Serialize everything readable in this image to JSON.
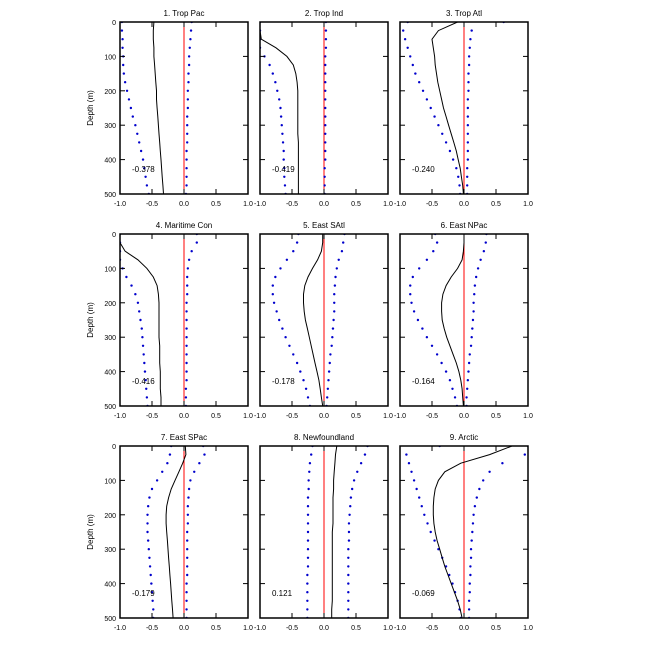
{
  "figure": {
    "ylabel": "Depth (m)",
    "x_ticks": [
      "-1.0",
      "-0.5",
      "0.0",
      "0.5",
      "1.0"
    ],
    "y_ticks": [
      "0",
      "100",
      "200",
      "300",
      "400",
      "500"
    ],
    "colors": {
      "mean": "#000000",
      "bounds": "#0000cc",
      "zero": "#ff0000"
    }
  },
  "chart_data": [
    {
      "type": "line",
      "title": "1. Trop Pac",
      "annotation": "-0.378",
      "xlim": [
        -1.0,
        1.0
      ],
      "ylim": [
        500,
        0
      ],
      "ylabel": "Depth (m)",
      "depths": [
        0,
        25,
        50,
        75,
        100,
        125,
        150,
        175,
        200,
        225,
        250,
        275,
        300,
        325,
        350,
        375,
        400,
        425,
        450,
        475,
        500
      ],
      "series": [
        {
          "role": "mean",
          "values": [
            -0.47,
            -0.48,
            -0.48,
            -0.47,
            -0.47,
            -0.46,
            -0.45,
            -0.44,
            -0.43,
            -0.43,
            -0.42,
            -0.41,
            -0.4,
            -0.39,
            -0.38,
            -0.37,
            -0.36,
            -0.35,
            -0.34,
            -0.33,
            -0.32
          ]
        },
        {
          "role": "lower",
          "values": [
            -0.97,
            -0.97,
            -0.96,
            -0.96,
            -0.95,
            -0.95,
            -0.94,
            -0.92,
            -0.89,
            -0.86,
            -0.83,
            -0.8,
            -0.76,
            -0.73,
            -0.7,
            -0.67,
            -0.64,
            -0.62,
            -0.6,
            -0.58,
            -0.55
          ]
        },
        {
          "role": "upper",
          "values": [
            0.12,
            0.11,
            0.1,
            0.09,
            0.08,
            0.08,
            0.07,
            0.07,
            0.06,
            0.06,
            0.06,
            0.05,
            0.05,
            0.05,
            0.05,
            0.04,
            0.04,
            0.04,
            0.04,
            0.04,
            0.03
          ]
        }
      ]
    },
    {
      "type": "line",
      "title": "2. Trop Ind",
      "annotation": "-0.419",
      "xlim": [
        -1.0,
        1.0
      ],
      "ylim": [
        500,
        0
      ],
      "ylabel": "",
      "depths": [
        0,
        25,
        50,
        75,
        100,
        125,
        150,
        175,
        200,
        225,
        250,
        275,
        300,
        325,
        350,
        375,
        400,
        425,
        450,
        475,
        500
      ],
      "series": [
        {
          "role": "mean",
          "values": [
            -1.05,
            -1.05,
            -0.98,
            -0.75,
            -0.58,
            -0.48,
            -0.44,
            -0.42,
            -0.41,
            -0.41,
            -0.41,
            -0.41,
            -0.41,
            -0.41,
            -0.4,
            -0.4,
            -0.4,
            -0.4,
            -0.4,
            -0.4,
            -0.4
          ]
        },
        {
          "role": "lower",
          "values": [
            -1.05,
            -1.05,
            -1.05,
            -1.0,
            -0.93,
            -0.85,
            -0.8,
            -0.76,
            -0.73,
            -0.7,
            -0.68,
            -0.67,
            -0.66,
            -0.65,
            -0.64,
            -0.63,
            -0.63,
            -0.62,
            -0.62,
            -0.61,
            -0.6
          ]
        },
        {
          "role": "upper",
          "values": [
            0.03,
            0.03,
            0.03,
            0.03,
            0.02,
            0.02,
            0.02,
            0.02,
            0.02,
            0.02,
            0.02,
            0.02,
            0.02,
            0.02,
            0.02,
            0.02,
            0.02,
            0.01,
            0.01,
            0.01,
            0.01
          ]
        }
      ]
    },
    {
      "type": "line",
      "title": "3. Trop Atl",
      "annotation": "-0.240",
      "xlim": [
        -1.0,
        1.0
      ],
      "ylim": [
        500,
        0
      ],
      "ylabel": "",
      "depths": [
        0,
        25,
        50,
        75,
        100,
        125,
        150,
        175,
        200,
        225,
        250,
        275,
        300,
        325,
        350,
        375,
        400,
        425,
        450,
        475,
        500
      ],
      "series": [
        {
          "role": "mean",
          "values": [
            -0.1,
            -0.4,
            -0.5,
            -0.48,
            -0.46,
            -0.45,
            -0.43,
            -0.41,
            -0.38,
            -0.35,
            -0.32,
            -0.28,
            -0.24,
            -0.2,
            -0.16,
            -0.12,
            -0.09,
            -0.06,
            -0.04,
            -0.02,
            -0.01
          ]
        },
        {
          "role": "lower",
          "values": [
            -0.88,
            -0.95,
            -0.92,
            -0.88,
            -0.84,
            -0.8,
            -0.76,
            -0.7,
            -0.64,
            -0.58,
            -0.52,
            -0.46,
            -0.4,
            -0.34,
            -0.28,
            -0.22,
            -0.17,
            -0.12,
            -0.09,
            -0.07,
            -0.06
          ]
        },
        {
          "role": "upper",
          "values": [
            0.62,
            0.12,
            0.1,
            0.09,
            0.08,
            0.08,
            0.07,
            0.07,
            0.07,
            0.06,
            0.06,
            0.06,
            0.06,
            0.06,
            0.06,
            0.06,
            0.06,
            0.05,
            0.05,
            0.05,
            0.05
          ]
        }
      ]
    },
    {
      "type": "line",
      "title": "4. Maritime Con",
      "annotation": "-0.416",
      "xlim": [
        -1.0,
        1.0
      ],
      "ylim": [
        500,
        0
      ],
      "ylabel": "Depth (m)",
      "depths": [
        0,
        25,
        50,
        75,
        100,
        125,
        150,
        175,
        200,
        225,
        250,
        275,
        300,
        325,
        350,
        375,
        400,
        425,
        450,
        475,
        500
      ],
      "series": [
        {
          "role": "mean",
          "values": [
            -1.05,
            -1.05,
            -0.92,
            -0.72,
            -0.58,
            -0.48,
            -0.42,
            -0.4,
            -0.39,
            -0.39,
            -0.39,
            -0.39,
            -0.39,
            -0.38,
            -0.38,
            -0.38,
            -0.37,
            -0.37,
            -0.37,
            -0.36,
            -0.36
          ]
        },
        {
          "role": "lower",
          "values": [
            -1.05,
            -1.05,
            -1.05,
            -1.0,
            -0.96,
            -0.9,
            -0.82,
            -0.76,
            -0.72,
            -0.7,
            -0.68,
            -0.66,
            -0.65,
            -0.64,
            -0.63,
            -0.62,
            -0.61,
            -0.6,
            -0.59,
            -0.58,
            -0.57
          ]
        },
        {
          "role": "upper",
          "values": [
            0.2,
            0.2,
            0.12,
            0.08,
            0.06,
            0.05,
            0.05,
            0.05,
            0.04,
            0.04,
            0.04,
            0.04,
            0.04,
            0.04,
            0.04,
            0.04,
            0.04,
            0.04,
            0.03,
            0.03,
            0.03
          ]
        }
      ]
    },
    {
      "type": "line",
      "title": "5. East SAtl",
      "annotation": "-0.178",
      "xlim": [
        -1.0,
        1.0
      ],
      "ylim": [
        500,
        0
      ],
      "ylabel": "",
      "depths": [
        0,
        25,
        50,
        75,
        100,
        125,
        150,
        175,
        200,
        225,
        250,
        275,
        300,
        325,
        350,
        375,
        400,
        425,
        450,
        475,
        500
      ],
      "series": [
        {
          "role": "mean",
          "values": [
            -0.02,
            -0.02,
            -0.04,
            -0.1,
            -0.18,
            -0.25,
            -0.3,
            -0.32,
            -0.32,
            -0.31,
            -0.29,
            -0.26,
            -0.23,
            -0.2,
            -0.17,
            -0.14,
            -0.11,
            -0.08,
            -0.06,
            -0.04,
            -0.02
          ]
        },
        {
          "role": "lower",
          "values": [
            -0.4,
            -0.42,
            -0.48,
            -0.58,
            -0.68,
            -0.76,
            -0.8,
            -0.8,
            -0.78,
            -0.74,
            -0.7,
            -0.65,
            -0.6,
            -0.54,
            -0.48,
            -0.42,
            -0.37,
            -0.32,
            -0.28,
            -0.25,
            -0.22
          ]
        },
        {
          "role": "upper",
          "values": [
            0.32,
            0.3,
            0.28,
            0.23,
            0.2,
            0.18,
            0.17,
            0.16,
            0.16,
            0.16,
            0.15,
            0.14,
            0.13,
            0.12,
            0.1,
            0.09,
            0.08,
            0.07,
            0.06,
            0.05,
            0.04
          ]
        }
      ]
    },
    {
      "type": "line",
      "title": "6. East NPac",
      "annotation": "-0.164",
      "xlim": [
        -1.0,
        1.0
      ],
      "ylim": [
        500,
        0
      ],
      "ylabel": "",
      "depths": [
        0,
        25,
        50,
        75,
        100,
        125,
        150,
        175,
        200,
        225,
        250,
        275,
        300,
        325,
        350,
        375,
        400,
        425,
        450,
        475,
        500
      ],
      "series": [
        {
          "role": "mean",
          "values": [
            0.0,
            0.0,
            -0.01,
            -0.03,
            -0.1,
            -0.2,
            -0.28,
            -0.33,
            -0.35,
            -0.35,
            -0.34,
            -0.31,
            -0.27,
            -0.22,
            -0.17,
            -0.12,
            -0.08,
            -0.05,
            -0.03,
            -0.02,
            -0.01
          ]
        },
        {
          "role": "lower",
          "values": [
            -0.45,
            -0.42,
            -0.48,
            -0.58,
            -0.7,
            -0.8,
            -0.84,
            -0.84,
            -0.82,
            -0.78,
            -0.72,
            -0.65,
            -0.58,
            -0.5,
            -0.42,
            -0.35,
            -0.28,
            -0.22,
            -0.18,
            -0.14,
            -0.11
          ]
        },
        {
          "role": "upper",
          "values": [
            0.35,
            0.34,
            0.31,
            0.26,
            0.22,
            0.19,
            0.17,
            0.16,
            0.15,
            0.15,
            0.14,
            0.13,
            0.12,
            0.11,
            0.09,
            0.08,
            0.07,
            0.06,
            0.05,
            0.04,
            0.04
          ]
        }
      ]
    },
    {
      "type": "line",
      "title": "7. East SPac",
      "annotation": "-0.179",
      "xlim": [
        -1.0,
        1.0
      ],
      "ylim": [
        500,
        0
      ],
      "ylabel": "Depth (m)",
      "depths": [
        0,
        25,
        50,
        75,
        100,
        125,
        150,
        175,
        200,
        225,
        250,
        275,
        300,
        325,
        350,
        375,
        400,
        425,
        450,
        475,
        500
      ],
      "series": [
        {
          "role": "mean",
          "values": [
            0.02,
            0.03,
            -0.02,
            -0.08,
            -0.14,
            -0.2,
            -0.24,
            -0.27,
            -0.28,
            -0.28,
            -0.27,
            -0.26,
            -0.25,
            -0.24,
            -0.23,
            -0.22,
            -0.21,
            -0.2,
            -0.19,
            -0.18,
            -0.17
          ]
        },
        {
          "role": "lower",
          "values": [
            -0.2,
            -0.22,
            -0.26,
            -0.34,
            -0.42,
            -0.5,
            -0.54,
            -0.56,
            -0.57,
            -0.57,
            -0.57,
            -0.56,
            -0.55,
            -0.54,
            -0.53,
            -0.52,
            -0.51,
            -0.5,
            -0.49,
            -0.48,
            -0.48
          ]
        },
        {
          "role": "upper",
          "values": [
            0.3,
            0.32,
            0.24,
            0.16,
            0.1,
            0.08,
            0.07,
            0.06,
            0.06,
            0.06,
            0.05,
            0.05,
            0.05,
            0.05,
            0.05,
            0.05,
            0.04,
            0.04,
            0.04,
            0.04,
            0.04
          ]
        }
      ]
    },
    {
      "type": "line",
      "title": "8. Newfoundland",
      "annotation": "0.121",
      "xlim": [
        -1.0,
        1.0
      ],
      "ylim": [
        500,
        0
      ],
      "ylabel": "",
      "depths": [
        0,
        25,
        50,
        75,
        100,
        125,
        150,
        175,
        200,
        225,
        250,
        275,
        300,
        325,
        350,
        375,
        400,
        425,
        450,
        475,
        500
      ],
      "series": [
        {
          "role": "mean",
          "values": [
            0.2,
            0.18,
            0.17,
            0.16,
            0.15,
            0.15,
            0.14,
            0.14,
            0.14,
            0.14,
            0.13,
            0.13,
            0.13,
            0.13,
            0.13,
            0.13,
            0.13,
            0.13,
            0.13,
            0.12,
            0.12
          ]
        },
        {
          "role": "lower",
          "values": [
            -0.18,
            -0.2,
            -0.22,
            -0.23,
            -0.24,
            -0.24,
            -0.25,
            -0.25,
            -0.25,
            -0.25,
            -0.25,
            -0.25,
            -0.25,
            -0.25,
            -0.25,
            -0.26,
            -0.26,
            -0.26,
            -0.26,
            -0.26,
            -0.26
          ]
        },
        {
          "role": "upper",
          "values": [
            0.68,
            0.64,
            0.58,
            0.52,
            0.47,
            0.44,
            0.42,
            0.41,
            0.4,
            0.39,
            0.39,
            0.39,
            0.38,
            0.38,
            0.38,
            0.38,
            0.38,
            0.38,
            0.38,
            0.38,
            0.38
          ]
        }
      ]
    },
    {
      "type": "line",
      "title": "9. Arctic",
      "annotation": "-0.069",
      "xlim": [
        -1.0,
        1.0
      ],
      "ylim": [
        500,
        0
      ],
      "ylabel": "",
      "depths": [
        0,
        25,
        50,
        75,
        100,
        125,
        150,
        175,
        200,
        225,
        250,
        275,
        300,
        325,
        350,
        375,
        400,
        425,
        450,
        475,
        500
      ],
      "series": [
        {
          "role": "mean",
          "values": [
            0.75,
            0.4,
            -0.05,
            -0.3,
            -0.4,
            -0.45,
            -0.47,
            -0.48,
            -0.48,
            -0.47,
            -0.45,
            -0.42,
            -0.38,
            -0.34,
            -0.3,
            -0.25,
            -0.2,
            -0.15,
            -0.1,
            -0.06,
            -0.03
          ]
        },
        {
          "role": "lower",
          "values": [
            -0.38,
            -0.9,
            -0.86,
            -0.82,
            -0.78,
            -0.74,
            -0.7,
            -0.66,
            -0.62,
            -0.57,
            -0.52,
            -0.46,
            -0.4,
            -0.34,
            -0.28,
            -0.23,
            -0.18,
            -0.14,
            -0.1,
            -0.07,
            -0.05
          ]
        },
        {
          "role": "upper",
          "values": [
            1.05,
            0.95,
            0.6,
            0.4,
            0.3,
            0.24,
            0.2,
            0.17,
            0.15,
            0.14,
            0.13,
            0.12,
            0.11,
            0.11,
            0.1,
            0.1,
            0.09,
            0.09,
            0.08,
            0.08,
            0.08
          ]
        }
      ]
    }
  ]
}
